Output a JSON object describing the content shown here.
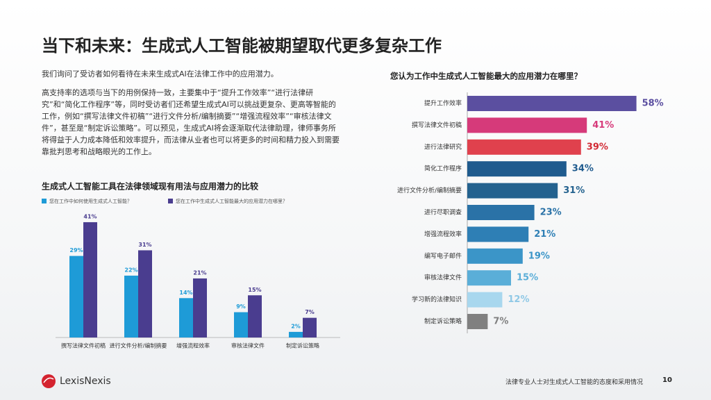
{
  "title": "当下和未来：生成式人工智能被期望取代更多复杂工作",
  "paragraphs": [
    "我们询问了受访者如何看待在未来生成式AI在法律工作中的应用潜力。",
    "高支持率的选项与当下的用例保持一致，主要集中于“提升工作效率”“进行法律研究”和“简化工作程序”等，同时受访者们还希望生成式AI可以挑战更复杂、更高等智能的工作，例如“撰写法律文件初稿”“进行文件分析/编制摘要”“增强流程效率”“审核法律文件”，甚至是“制定诉讼策略”。可以预见，生成式AI将会逐渐取代法律助理，律师事务所将得益于人力成本降低和效率提升，而法律从业者也可以将更多的时间和精力投入到需要靠批判思考和战略眼光的工作上。"
  ],
  "chart_data": [
    {
      "type": "grouped-bar",
      "title": "生成式人工智能工具在法律领域现有用法与应用潜力的比较",
      "categories": [
        "撰写法律文件初稿",
        "进行文件分析/编制摘要",
        "增强流程效率",
        "审核法律文件",
        "制定诉讼策略"
      ],
      "series": [
        {
          "name": "您在工作中如何使用生成式人工智能？",
          "color": "#1e9bd7",
          "values": [
            29,
            22,
            14,
            9,
            2
          ],
          "value_labels": [
            "29%",
            "22%",
            "14%",
            "9%",
            "2%"
          ]
        },
        {
          "name": "您在工作中生成式人工智能最大的应用潜力在哪里？",
          "color": "#4a3d8f",
          "values": [
            41,
            31,
            21,
            15,
            7
          ],
          "value_labels": [
            "41%",
            "31%",
            "21%",
            "15%",
            "7%"
          ]
        }
      ]
    },
    {
      "type": "horizontal-bar",
      "title": "您认为工作中生成式人工智能最大的应用潜力在哪里？",
      "categories": [
        "提升工作效率",
        "撰写法律文件初稿",
        "进行法律研究",
        "简化工作程序",
        "进行文件分析/编制摘要",
        "进行尽职调查",
        "增强流程效率",
        "编写电子邮件",
        "审核法律文件",
        "学习新的法律知识",
        "制定诉讼策略"
      ],
      "values": [
        58,
        41,
        39,
        34,
        31,
        23,
        21,
        19,
        15,
        12,
        7
      ],
      "value_labels": [
        "58%",
        "41%",
        "39%",
        "34%",
        "31%",
        "23%",
        "21%",
        "19%",
        "15%",
        "12%",
        "7%"
      ],
      "colors": [
        "#5b4fa0",
        "#d63a7a",
        "#e0414d",
        "#1f5b8e",
        "#24628f",
        "#2a72a7",
        "#2e7fb5",
        "#3b95c8",
        "#5aaed8",
        "#a8d7ee",
        "#808080"
      ],
      "label_colors": [
        "#5b4fa0",
        "#d63a7a",
        "#d22a35",
        "#1f5b8e",
        "#24628f",
        "#2a72a7",
        "#2e7fb5",
        "#3b95c8",
        "#5aaed8",
        "#8fc8e6",
        "#808080"
      ]
    }
  ],
  "footer": {
    "logo": "LexisNexis",
    "text": "法律专业人士对生成式人工智能的态度和采用情况",
    "page": "10"
  }
}
